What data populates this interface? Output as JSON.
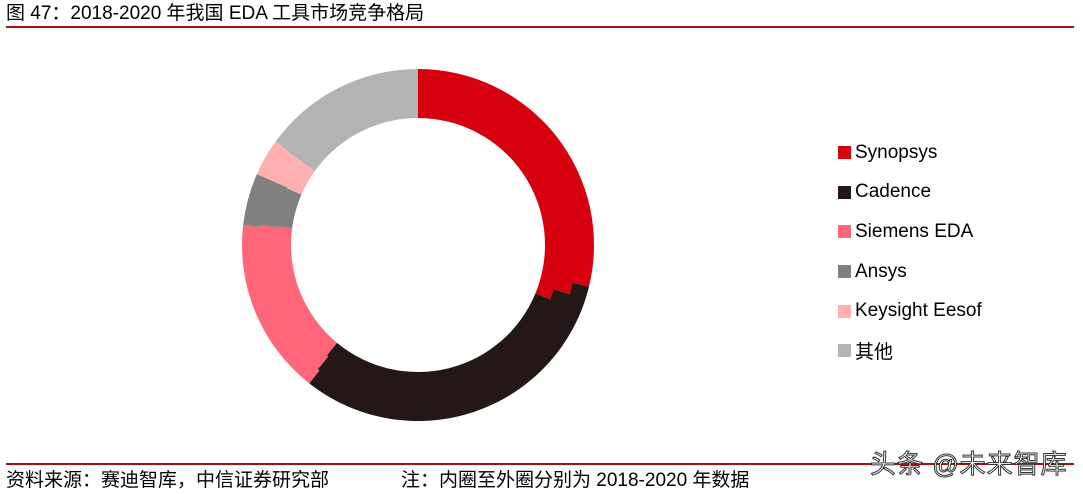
{
  "header": {
    "title": "图 47：2018-2020 年我国 EDA 工具市场竞争格局"
  },
  "footer": {
    "source": "资料来源：赛迪智库，中信证券研究部",
    "note": "注：内圈至外圈分别为 2018-2020 年数据",
    "watermark": "头条 @未来智库"
  },
  "colors": {
    "rule": "#a50f15"
  },
  "chart_data": {
    "type": "pie",
    "subtype": "multi-ring donut",
    "title": "2018-2020 年我国 EDA 工具市场竞争格局",
    "note": "内圈至外圈分别为 2018-2020 年数据",
    "categories": [
      "Synopsys",
      "Cadence",
      "Siemens EDA",
      "Ansys",
      "Keysight Eesof",
      "其他"
    ],
    "colors": [
      "#d7000f",
      "#231815",
      "#ff667a",
      "#808080",
      "#ffafb0",
      "#b3b3b3"
    ],
    "series": [
      {
        "name": "2018",
        "ring": "inner",
        "values": [
          31.2,
          29.8,
          16.1,
          4.4,
          3.4,
          15.1
        ]
      },
      {
        "name": "2019",
        "ring": "middle",
        "values": [
          30.0,
          30.8,
          16.2,
          4.6,
          3.3,
          15.1
        ]
      },
      {
        "name": "2020",
        "ring": "outer",
        "values": [
          28.8,
          31.8,
          16.2,
          4.8,
          3.4,
          15.0
        ]
      }
    ],
    "unit": "%",
    "start_angle": "12 o'clock, clockwise",
    "legend_position": "right",
    "data_labels": false
  },
  "legend": {
    "items": [
      {
        "label": "Synopsys",
        "color": "#d7000f"
      },
      {
        "label": "Cadence",
        "color": "#231815"
      },
      {
        "label": "Siemens EDA",
        "color": "#ff667a"
      },
      {
        "label": "Ansys",
        "color": "#808080"
      },
      {
        "label": "Keysight Eesof",
        "color": "#ffafb0"
      },
      {
        "label": "其他",
        "color": "#b3b3b3"
      }
    ]
  }
}
